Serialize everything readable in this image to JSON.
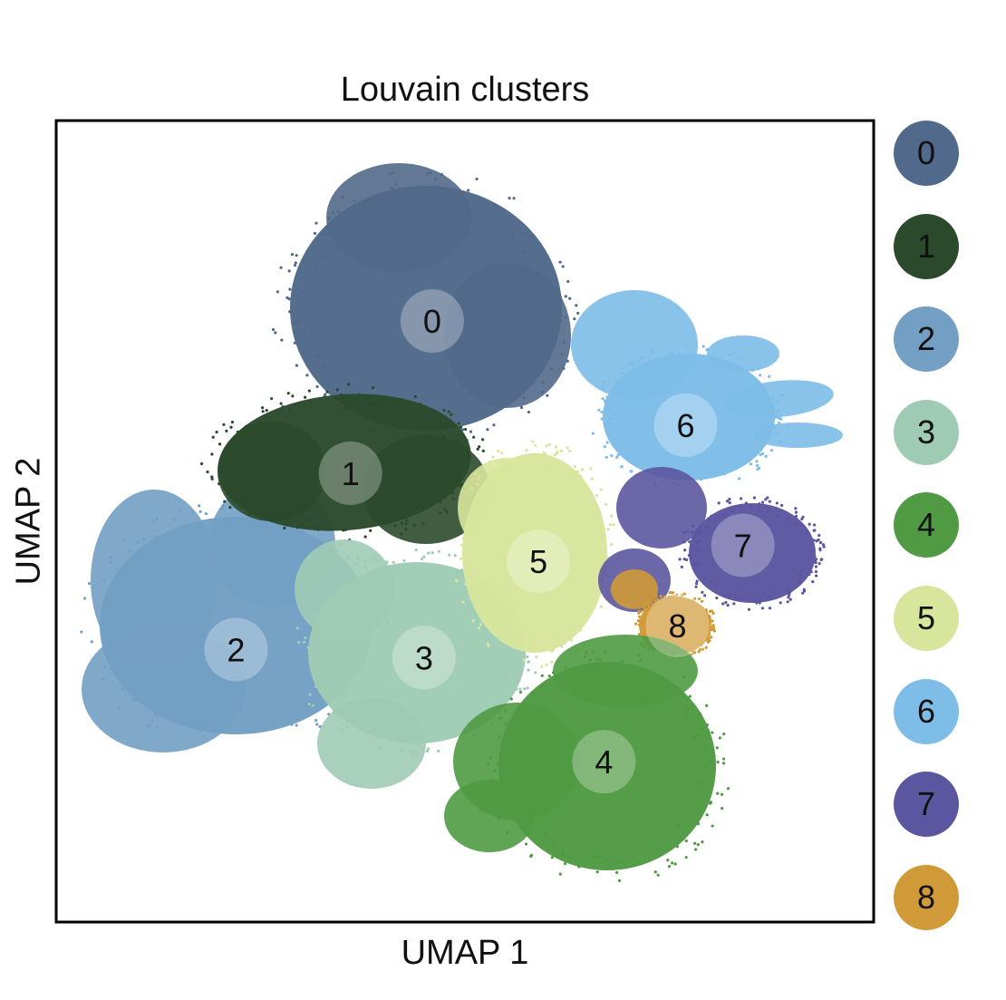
{
  "chart_data": {
    "type": "scatter",
    "title": "Louvain clusters",
    "xlabel": "UMAP 1",
    "ylabel": "UMAP 2",
    "xlim": [
      0,
      10
    ],
    "ylim": [
      0,
      10
    ],
    "grid": false,
    "legend": "right",
    "clusters": [
      {
        "id": "0",
        "color": "#51698a",
        "center": [
          4.6,
          7.5
        ]
      },
      {
        "id": "1",
        "color": "#2b4a2c",
        "center": [
          3.6,
          5.6
        ]
      },
      {
        "id": "2",
        "color": "#729fc3",
        "center": [
          2.2,
          3.4
        ]
      },
      {
        "id": "3",
        "color": "#9fcbb5",
        "center": [
          4.5,
          3.3
        ]
      },
      {
        "id": "4",
        "color": "#4f9a43",
        "center": [
          6.7,
          2.0
        ]
      },
      {
        "id": "5",
        "color": "#d8e59c",
        "center": [
          5.9,
          4.5
        ]
      },
      {
        "id": "6",
        "color": "#7dbde8",
        "center": [
          7.7,
          6.2
        ]
      },
      {
        "id": "7",
        "color": "#5b56a0",
        "center": [
          8.4,
          4.7
        ]
      },
      {
        "id": "8",
        "color": "#d09a38",
        "center": [
          7.6,
          3.7
        ]
      }
    ]
  }
}
